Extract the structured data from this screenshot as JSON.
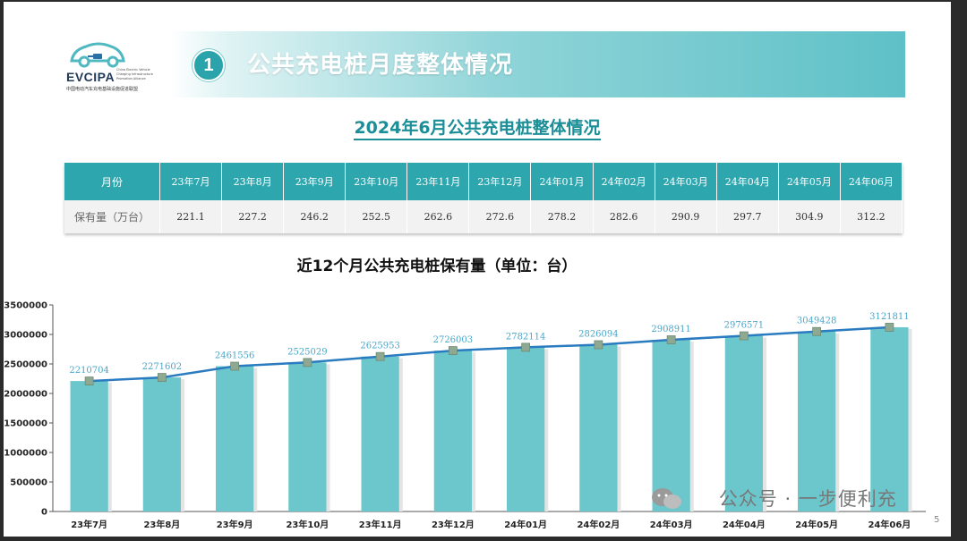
{
  "logo": {
    "name": "EVCIPA",
    "sub_en": "China Electric Vehicle Charging Infrastructure Promotion Alliance",
    "sub_cn": "中国电动汽车充电基础设施促进联盟"
  },
  "header": {
    "number": "1",
    "title": "公共充电桩月度整体情况"
  },
  "subtitle": "2024年6月公共充电桩整体情况",
  "table": {
    "header_label": "月份",
    "row_label": "保有量（万台）",
    "months": [
      "23年7月",
      "23年8月",
      "23年9月",
      "23年10月",
      "23年11月",
      "23年12月",
      "24年01月",
      "24年02月",
      "24年03月",
      "24年04月",
      "24年05月",
      "24年06月"
    ],
    "values": [
      "221.1",
      "227.2",
      "246.2",
      "252.5",
      "262.6",
      "272.6",
      "278.2",
      "282.6",
      "290.9",
      "297.7",
      "304.9",
      "312.2"
    ]
  },
  "chart_title": "近12个月公共充电桩保有量（单位：台）",
  "chart_data": {
    "type": "bar",
    "categories": [
      "23年7月",
      "23年8月",
      "23年9月",
      "23年10月",
      "23年11月",
      "23年12月",
      "24年01月",
      "24年02月",
      "24年03月",
      "24年04月",
      "24年05月",
      "24年06月"
    ],
    "values": [
      2210704,
      2271602,
      2461556,
      2525029,
      2625953,
      2726003,
      2782114,
      2826094,
      2908911,
      2976571,
      3049428,
      3121811
    ],
    "series": [
      {
        "values": [
          2210704,
          2271602,
          2461556,
          2525029,
          2625953,
          2726003,
          2782114,
          2826094,
          2908911,
          2976571,
          3049428,
          3121811
        ]
      }
    ],
    "yticks": [
      "0",
      "500000",
      "1000000",
      "1500000",
      "2000000",
      "2500000",
      "3000000",
      "3500000"
    ],
    "ylim": [
      0,
      3500000
    ],
    "overlay": "line",
    "grid": false,
    "legend": "none",
    "colors": {
      "bar": "#6cc7cd",
      "line": "#2a7bbf",
      "marker": "#8fa892",
      "label": "#4aa6c9"
    }
  },
  "watermark": "公众号 · 一步便利充",
  "page_number": "5",
  "colors": {
    "accent": "#2ea6ae",
    "title": "#1b8e97"
  }
}
